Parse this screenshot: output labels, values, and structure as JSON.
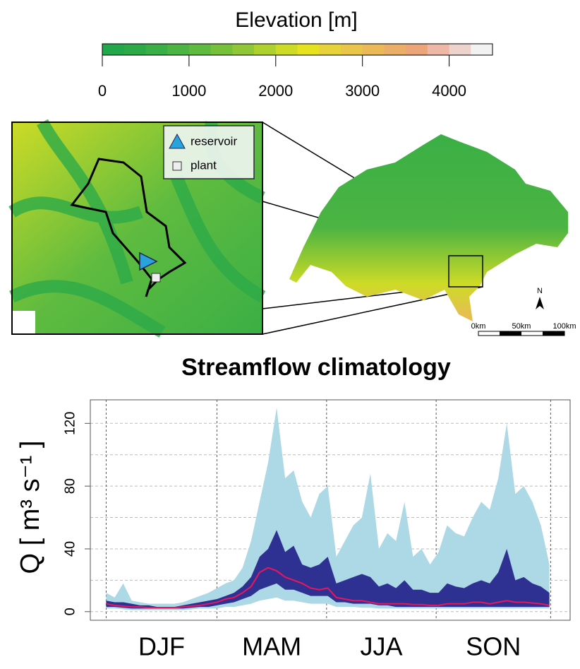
{
  "colorbar": {
    "title": "Elevation [m]",
    "lim": [
      0,
      4500
    ],
    "ticks": [
      0,
      1000,
      2000,
      3000,
      4000
    ],
    "colors": [
      "#22a84a",
      "#2daa48",
      "#3aaf45",
      "#4cb443",
      "#5fbb3f",
      "#76c03a",
      "#8fc736",
      "#aed12e",
      "#cddb26",
      "#e6e21f",
      "#e8d23a",
      "#e9c64a",
      "#eab958",
      "#ebae68",
      "#eca578",
      "#edb8a6",
      "#eed3cc",
      "#f2f2f2"
    ]
  },
  "map": {
    "legend": [
      "reservoir",
      "plant"
    ],
    "north": "N",
    "scale": [
      "0km",
      "50km",
      "100km"
    ]
  },
  "chart_data": {
    "type": "line",
    "title": "Streamflow climatology",
    "ylabel": "Q [ m³ s⁻¹ ]",
    "categories": [
      "DJF",
      "MAM",
      "JJA",
      "SON"
    ],
    "xgrid": [
      0,
      91,
      181,
      271,
      365
    ],
    "xlim": [
      -13,
      381
    ],
    "ylim": [
      -5.5,
      135
    ],
    "yticks": [
      0,
      40,
      80,
      120
    ],
    "ygrid": [
      0,
      20,
      40,
      60,
      80,
      100,
      120
    ],
    "grid": true,
    "x": [
      0,
      7,
      14,
      21,
      28,
      35,
      42,
      49,
      56,
      63,
      70,
      77,
      84,
      91,
      98,
      105,
      112,
      119,
      126,
      133,
      140,
      147,
      154,
      161,
      168,
      175,
      182,
      189,
      196,
      203,
      210,
      217,
      224,
      231,
      238,
      245,
      252,
      259,
      266,
      273,
      280,
      287,
      294,
      301,
      308,
      315,
      322,
      329,
      336,
      343,
      350,
      357,
      364
    ],
    "bands": [
      {
        "color": "#add8e6",
        "upper": [
          12,
          9,
          18,
          7,
          6,
          5,
          5,
          5,
          5,
          6,
          8,
          10,
          12,
          15,
          18,
          20,
          28,
          45,
          70,
          95,
          130,
          85,
          90,
          70,
          60,
          75,
          80,
          35,
          45,
          55,
          60,
          88,
          40,
          50,
          45,
          70,
          35,
          40,
          30,
          38,
          55,
          50,
          48,
          60,
          70,
          65,
          85,
          120,
          75,
          80,
          70,
          55,
          30
        ],
        "lower": [
          2,
          2,
          1.5,
          1,
          1,
          1,
          1,
          1,
          1,
          1,
          1.5,
          2,
          2,
          2,
          3,
          3,
          4,
          5,
          7,
          8,
          9,
          7,
          7,
          6,
          5,
          5,
          5,
          3,
          3,
          3,
          2.5,
          2.5,
          2,
          2,
          2,
          2,
          2,
          2,
          2,
          2,
          2,
          2,
          2,
          2,
          2,
          2,
          2,
          2,
          2,
          2,
          2,
          2,
          2
        ]
      },
      {
        "color": "#2e3192",
        "upper": [
          7,
          6,
          6,
          5,
          4,
          4,
          3,
          3,
          3,
          4,
          5,
          6,
          7,
          8,
          10,
          12,
          16,
          22,
          35,
          40,
          52,
          38,
          42,
          30,
          28,
          30,
          35,
          18,
          20,
          22,
          24,
          22,
          16,
          18,
          15,
          20,
          14,
          14,
          12,
          12,
          18,
          16,
          15,
          18,
          20,
          18,
          25,
          40,
          20,
          22,
          18,
          16,
          12
        ],
        "lower": [
          3,
          3,
          2.5,
          2,
          2,
          2,
          2,
          2,
          2,
          2,
          2.5,
          3,
          3,
          4,
          5,
          6,
          8,
          10,
          14,
          16,
          18,
          14,
          14,
          12,
          10,
          10,
          10,
          6,
          6,
          5,
          5,
          5,
          4,
          4,
          3,
          3,
          3,
          3,
          3,
          3,
          3,
          3,
          3,
          3,
          3,
          3,
          3,
          3,
          3,
          3,
          3,
          3,
          3
        ]
      }
    ],
    "series": [
      {
        "color": "#e8175d",
        "values": [
          5,
          4,
          3.5,
          3,
          3,
          2.5,
          2.5,
          2.5,
          2.5,
          3,
          3.5,
          4,
          5,
          6,
          8,
          9,
          12,
          16,
          25,
          28,
          26,
          22,
          20,
          18,
          15,
          14,
          15,
          9,
          8,
          7,
          7,
          6,
          5,
          5,
          5,
          5,
          4.5,
          4.5,
          4,
          4,
          5,
          5,
          5,
          6,
          6,
          5,
          6,
          7,
          6,
          6,
          5.5,
          5,
          4
        ]
      }
    ]
  }
}
